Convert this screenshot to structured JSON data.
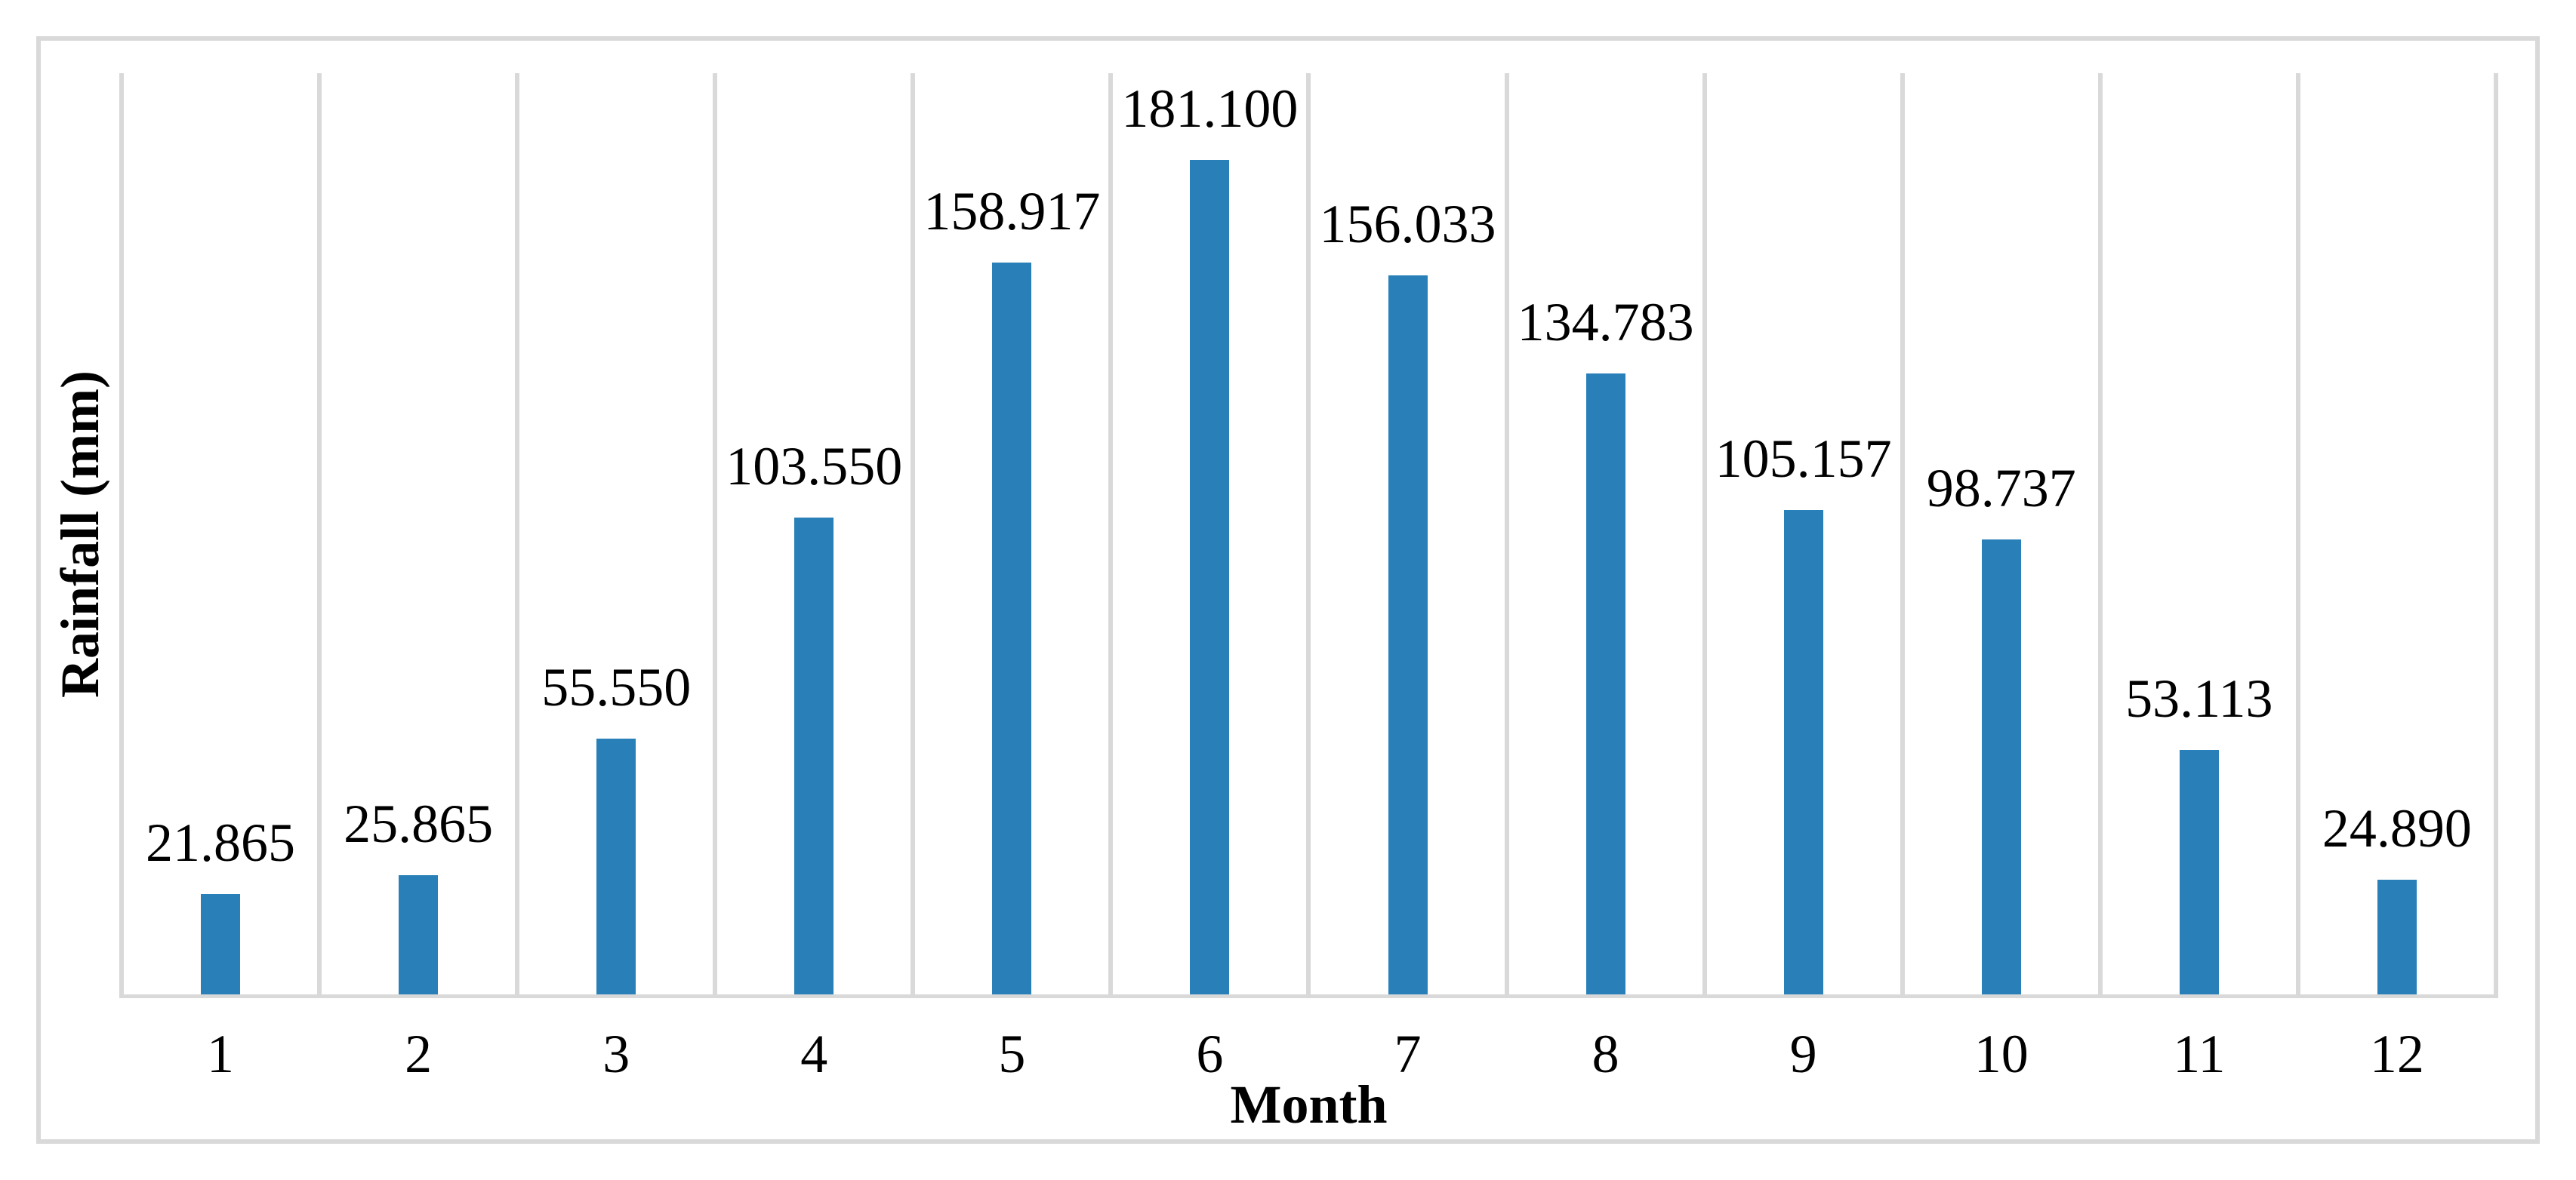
{
  "chart_data": {
    "type": "bar",
    "title": "",
    "xlabel": "Month",
    "ylabel": "Rainfall (mm)",
    "categories": [
      "1",
      "2",
      "3",
      "4",
      "5",
      "6",
      "7",
      "8",
      "9",
      "10",
      "11",
      "12"
    ],
    "values": [
      21.865,
      25.865,
      55.55,
      103.55,
      158.917,
      181.1,
      156.033,
      134.783,
      105.157,
      98.737,
      53.113,
      24.89
    ],
    "value_labels": [
      "21.865",
      "25.865",
      "55.550",
      "103.550",
      "158.917",
      "181.100",
      "156.033",
      "134.783",
      "105.157",
      "98.737",
      "53.113",
      "24.890"
    ],
    "ylim": [
      0,
      200
    ],
    "grid": "vertical-gridlines-only",
    "legend": "none",
    "bar_color": "#2980B9",
    "gridline_color": "#D9D9D9",
    "text_color": "#000000"
  }
}
